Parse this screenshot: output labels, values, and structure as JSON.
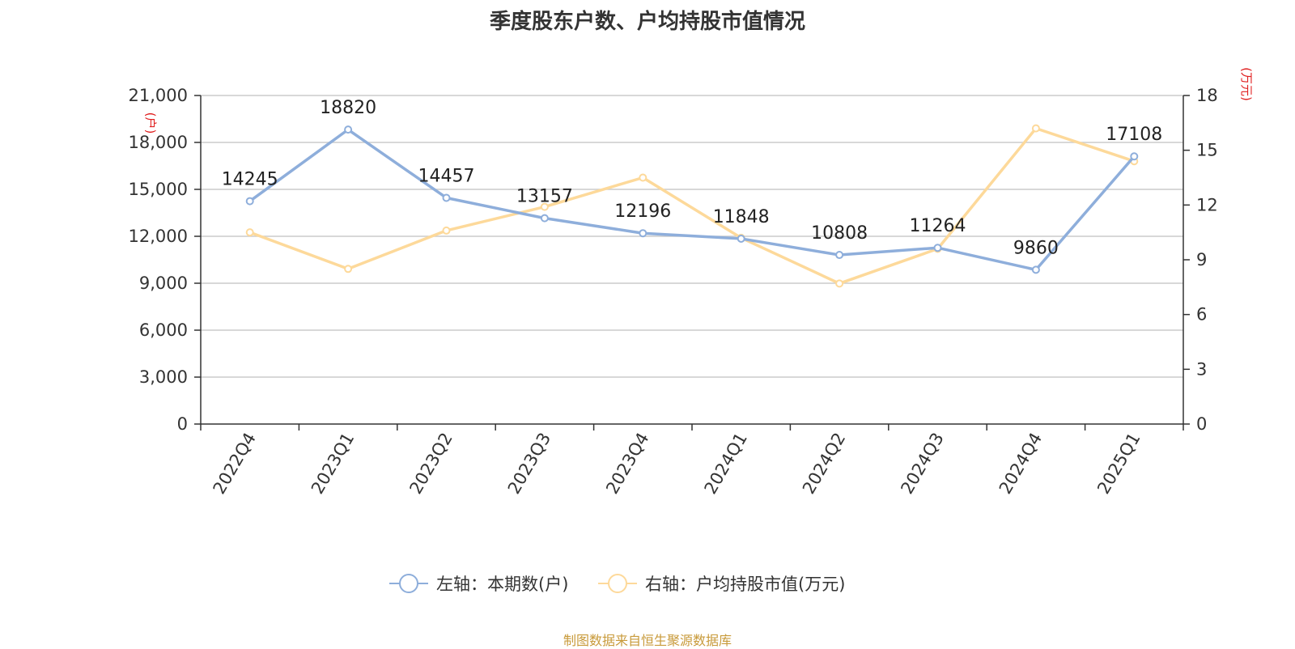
{
  "chart_data": {
    "type": "line",
    "title": "季度股东户数、户均持股市值情况",
    "categories": [
      "2022Q4",
      "2023Q1",
      "2023Q2",
      "2023Q3",
      "2023Q4",
      "2024Q1",
      "2024Q2",
      "2024Q3",
      "2024Q4",
      "2025Q1"
    ],
    "series": [
      {
        "name": "左轴：本期数(户)",
        "axis": "left",
        "color": "#8eaedb",
        "values": [
          14245,
          18820,
          14457,
          13157,
          12196,
          11848,
          10808,
          11264,
          9860,
          17108
        ],
        "labels": [
          "14245",
          "18820",
          "14457",
          "13157",
          "12196",
          "11848",
          "10808",
          "11264",
          "9860",
          "17108"
        ]
      },
      {
        "name": "右轴：户均持股市值(万元)",
        "axis": "right",
        "color": "#fdd99a",
        "values": [
          10.5,
          8.5,
          10.6,
          11.9,
          13.5,
          10.2,
          7.7,
          9.6,
          16.2,
          14.4
        ]
      }
    ],
    "left_axis": {
      "unit": "(户)",
      "ylim": [
        0,
        21000
      ],
      "ticks": [
        0,
        3000,
        6000,
        9000,
        12000,
        15000,
        18000,
        21000
      ],
      "tick_labels": [
        "0",
        "3,000",
        "6,000",
        "9,000",
        "12,000",
        "15,000",
        "18,000",
        "21,000"
      ]
    },
    "right_axis": {
      "unit": "(万元)",
      "ylim": [
        0,
        18
      ],
      "ticks": [
        0,
        3,
        6,
        9,
        12,
        15,
        18
      ],
      "tick_labels": [
        "0",
        "3",
        "6",
        "9",
        "12",
        "15",
        "18"
      ]
    },
    "grid": true,
    "legend_position": "bottom-center",
    "source": "制图数据来自恒生聚源数据库"
  }
}
